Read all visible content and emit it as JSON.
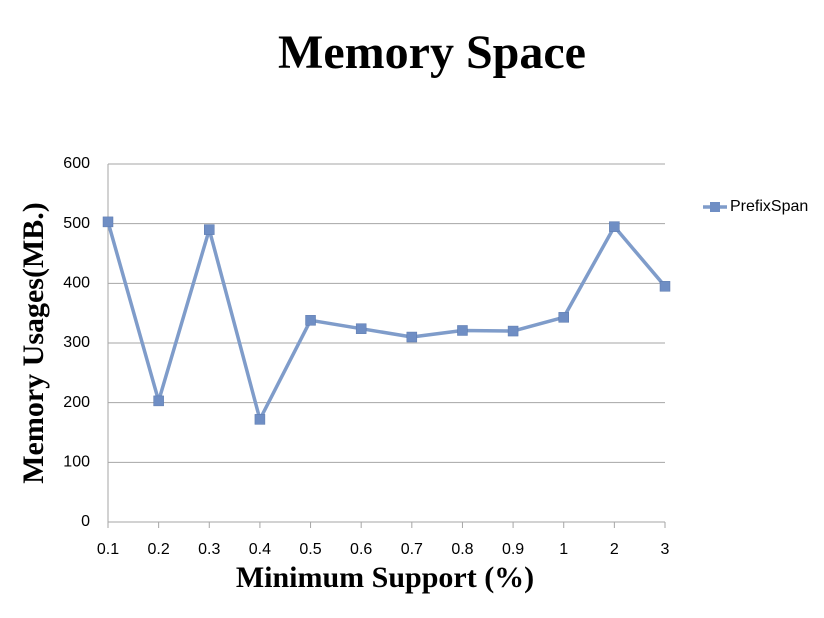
{
  "chart_data": {
    "type": "line",
    "title": "Memory Space",
    "x_label": "Minimum Support (%)",
    "y_label": "Memory Usages(MB.)",
    "categories": [
      "0.1",
      "0.2",
      "0.3",
      "0.4",
      "0.5",
      "0.6",
      "0.7",
      "0.8",
      "0.9",
      "1",
      "2",
      "3"
    ],
    "series": [
      {
        "name": "PrefixSpan",
        "color": "#7f9cca",
        "values": [
          503,
          203,
          490,
          172,
          338,
          324,
          310,
          321,
          320,
          343,
          495,
          395
        ]
      }
    ],
    "ylim": [
      0,
      600
    ],
    "yticks": [
      0,
      100,
      200,
      300,
      400,
      500,
      600
    ],
    "grid": true,
    "legend": "right"
  }
}
